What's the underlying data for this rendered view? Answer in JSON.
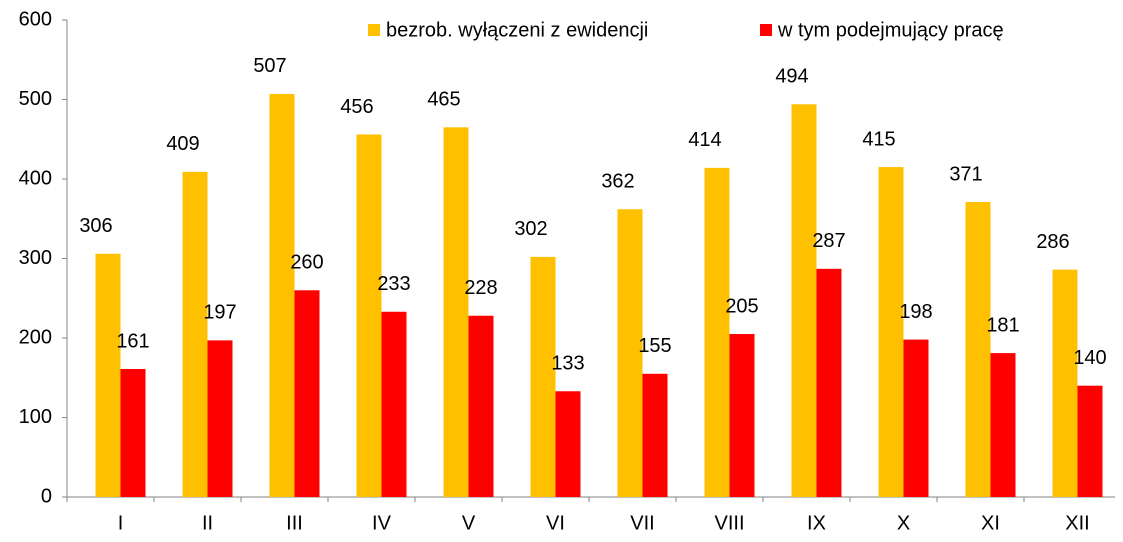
{
  "chart_data": {
    "type": "bar",
    "categories": [
      "I",
      "II",
      "III",
      "IV",
      "V",
      "VI",
      "VII",
      "VIII",
      "IX",
      "X",
      "XI",
      "XII"
    ],
    "series": [
      {
        "name": "bezrob. wyłączeni z ewidencji",
        "color": "#ffc000",
        "values": [
          306,
          409,
          507,
          456,
          465,
          302,
          362,
          414,
          494,
          415,
          371,
          286
        ]
      },
      {
        "name": "w tym podejmujący pracę",
        "color": "#ff0000",
        "values": [
          161,
          197,
          260,
          233,
          228,
          133,
          155,
          205,
          287,
          198,
          181,
          140
        ]
      }
    ],
    "ylim": [
      0,
      600
    ],
    "yticks": [
      0,
      100,
      200,
      300,
      400,
      500,
      600
    ],
    "grid": false,
    "legend": "top"
  }
}
